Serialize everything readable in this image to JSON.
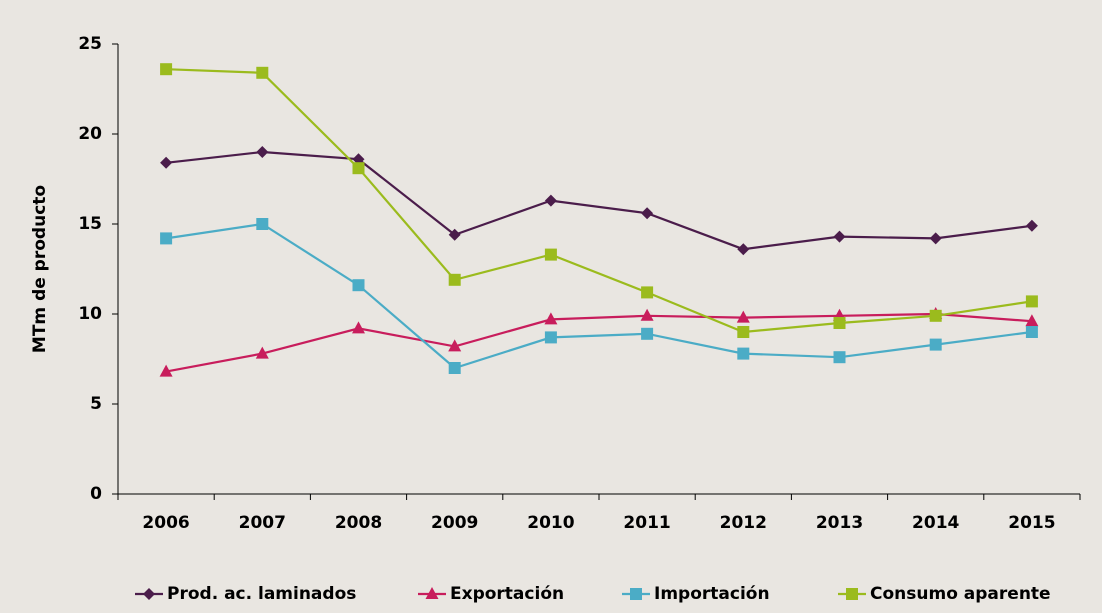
{
  "chart_data": {
    "type": "line",
    "y_label": "MTm de producto",
    "categories": [
      "2006",
      "2007",
      "2008",
      "2009",
      "2010",
      "2011",
      "2012",
      "2013",
      "2014",
      "2015"
    ],
    "series": [
      {
        "name": "Prod. ac. laminados",
        "color": "#4b1d4b",
        "marker": "diamond",
        "values": [
          18.4,
          19.0,
          18.6,
          14.4,
          16.3,
          15.6,
          13.6,
          14.3,
          14.2,
          14.9
        ]
      },
      {
        "name": "Exportación",
        "color": "#c81d5c",
        "marker": "triangle",
        "values": [
          6.8,
          7.8,
          9.2,
          8.2,
          9.7,
          9.9,
          9.8,
          9.9,
          10.0,
          9.6
        ]
      },
      {
        "name": "Importación",
        "color": "#4bacc6",
        "marker": "square",
        "values": [
          14.2,
          15.0,
          11.6,
          7.0,
          8.7,
          8.9,
          7.8,
          7.6,
          8.3,
          9.0
        ]
      },
      {
        "name": "Consumo aparente",
        "color": "#9bbb1d",
        "marker": "square",
        "values": [
          23.6,
          23.4,
          18.1,
          11.9,
          13.3,
          11.2,
          9.0,
          9.5,
          9.9,
          10.7
        ]
      }
    ],
    "ylim": [
      0,
      25
    ],
    "yticks": [
      0,
      5,
      10,
      15,
      20,
      25
    ],
    "grid": false,
    "legend": "bottom"
  }
}
